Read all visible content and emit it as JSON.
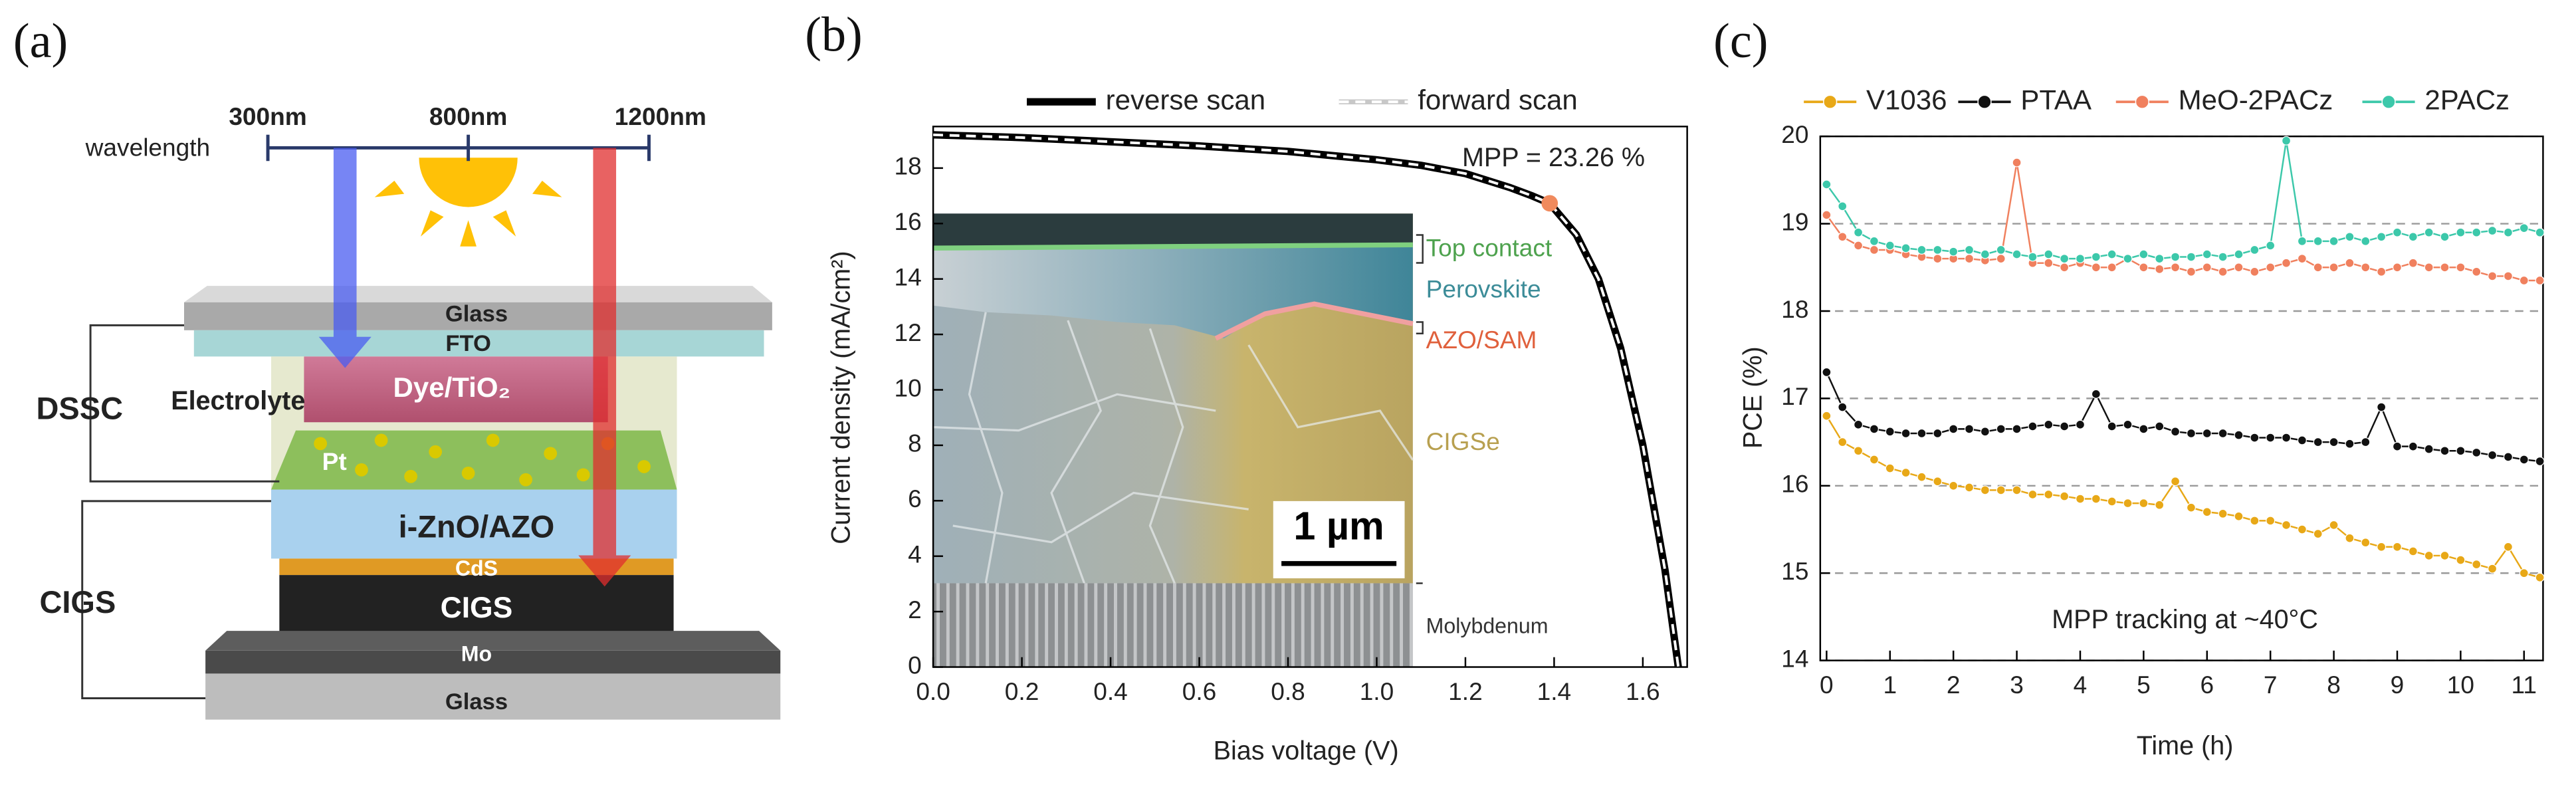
{
  "panel_labels": [
    "(a)",
    "(b)",
    "(c)"
  ],
  "diagram": {
    "wavelength_title": "wavelength",
    "wavelengths": [
      "300nm",
      "800nm",
      "1200nm"
    ],
    "labels": {
      "glass_top": "Glass",
      "fto": "FTO",
      "dye": "Dye/TiO₂",
      "electrolyte": "Electrolyte",
      "pt": "Pt",
      "azo": "i-ZnO/AZO",
      "cds": "CdS",
      "cigs_layer": "CIGS",
      "mo": "Mo",
      "glass_bottom": "Glass",
      "dssc": "DSSC",
      "cigs": "CIGS"
    }
  },
  "chart_data": [
    {
      "type": "line",
      "xlabel": "Bias voltage (V)",
      "ylabel": "Current density (mA/cm²)",
      "x": [
        0,
        0.2,
        0.4,
        0.6,
        0.8,
        1.0,
        1.1,
        1.2,
        1.3,
        1.35,
        1.39,
        1.45,
        1.5,
        1.55,
        1.6,
        1.65,
        1.68
      ],
      "series": [
        {
          "name": "reverse scan",
          "color": "#000000",
          "dash": false,
          "values": [
            19.2,
            19.1,
            18.95,
            18.8,
            18.6,
            18.3,
            18.1,
            17.8,
            17.3,
            17.0,
            16.73,
            15.6,
            14.0,
            11.5,
            8.0,
            3.5,
            0
          ]
        },
        {
          "name": "forward scan",
          "color": "#ffffff",
          "dash": true,
          "values": [
            19.2,
            19.1,
            18.95,
            18.8,
            18.6,
            18.3,
            18.1,
            17.8,
            17.3,
            17.0,
            16.73,
            15.6,
            14.0,
            11.5,
            8.0,
            3.5,
            0
          ]
        }
      ],
      "mpp_point": {
        "x": 1.39,
        "y": 16.73,
        "color": "#f08a5d"
      },
      "annotation": "MPP = 23.26 %",
      "inset_labels": [
        "Top contact",
        "Perovskite",
        "AZO/SAM",
        "CIGSe",
        "Molybdenum",
        "1 µm"
      ],
      "xlim": [
        0,
        1.7
      ],
      "xticks": [
        {
          "value": 0,
          "label": "0.0"
        },
        0.2,
        0.4,
        0.6,
        0.8,
        {
          "value": 1,
          "label": "1.0"
        },
        1.2,
        1.4,
        1.6
      ],
      "ylim": [
        0,
        19.5
      ],
      "yticks": [
        0,
        2,
        4,
        6,
        8,
        10,
        12,
        14,
        16,
        18
      ],
      "grid": false,
      "markers": false
    },
    {
      "type": "line",
      "xlabel": "Time (h)",
      "ylabel": "PCE (%)",
      "x": [
        0,
        0.25,
        0.5,
        0.75,
        1,
        1.25,
        1.5,
        1.75,
        2,
        2.25,
        2.5,
        2.75,
        3,
        3.25,
        3.5,
        3.75,
        4,
        4.25,
        4.5,
        4.75,
        5,
        5.25,
        5.5,
        5.75,
        6,
        6.25,
        6.5,
        6.75,
        7,
        7.25,
        7.5,
        7.75,
        8,
        8.25,
        8.5,
        8.75,
        9,
        9.25,
        9.5,
        9.75,
        10,
        10.25,
        10.5,
        10.75,
        11,
        11.25
      ],
      "series": [
        {
          "name": "V1036",
          "color": "#e8a817",
          "values": [
            16.8,
            16.5,
            16.4,
            16.3,
            16.2,
            16.15,
            16.1,
            16.05,
            16.0,
            15.98,
            15.95,
            15.95,
            15.95,
            15.9,
            15.9,
            15.88,
            15.85,
            15.85,
            15.82,
            15.8,
            15.8,
            15.78,
            16.05,
            15.75,
            15.7,
            15.68,
            15.65,
            15.6,
            15.6,
            15.55,
            15.5,
            15.45,
            15.55,
            15.4,
            15.35,
            15.3,
            15.3,
            15.25,
            15.2,
            15.2,
            15.15,
            15.1,
            15.05,
            15.3,
            15.0,
            14.95
          ]
        },
        {
          "name": "PTAA",
          "color": "#111111",
          "values": [
            17.3,
            16.9,
            16.7,
            16.65,
            16.62,
            16.6,
            16.6,
            16.6,
            16.65,
            16.65,
            16.62,
            16.65,
            16.65,
            16.68,
            16.7,
            16.68,
            16.7,
            17.05,
            16.68,
            16.7,
            16.65,
            16.68,
            16.62,
            16.6,
            16.6,
            16.6,
            16.58,
            16.55,
            16.55,
            16.55,
            16.52,
            16.5,
            16.5,
            16.48,
            16.5,
            16.9,
            16.45,
            16.45,
            16.42,
            16.4,
            16.4,
            16.38,
            16.35,
            16.33,
            16.3,
            16.28
          ]
        },
        {
          "name": "MeO-2PACz",
          "color": "#f0805e",
          "values": [
            19.1,
            18.85,
            18.75,
            18.7,
            18.7,
            18.65,
            18.62,
            18.6,
            18.6,
            18.6,
            18.58,
            18.6,
            19.7,
            18.55,
            18.55,
            18.5,
            18.55,
            18.5,
            18.5,
            18.6,
            18.5,
            18.48,
            18.5,
            18.45,
            18.5,
            18.45,
            18.5,
            18.45,
            18.5,
            18.55,
            18.6,
            18.5,
            18.5,
            18.55,
            18.5,
            18.45,
            18.5,
            18.55,
            18.5,
            18.5,
            18.5,
            18.45,
            18.4,
            18.4,
            18.35,
            18.35
          ]
        },
        {
          "name": "2PACz",
          "color": "#3cc8aa",
          "values": [
            19.45,
            19.2,
            18.9,
            18.8,
            18.75,
            18.72,
            18.7,
            18.7,
            18.68,
            18.7,
            18.65,
            18.7,
            18.65,
            18.62,
            18.65,
            18.6,
            18.6,
            18.62,
            18.65,
            18.6,
            18.65,
            18.6,
            18.62,
            18.62,
            18.65,
            18.62,
            18.65,
            18.7,
            18.75,
            19.95,
            18.8,
            18.8,
            18.8,
            18.85,
            18.8,
            18.85,
            18.9,
            18.85,
            18.9,
            18.85,
            18.9,
            18.9,
            18.92,
            18.9,
            18.95,
            18.9
          ]
        }
      ],
      "annotation": "MPP tracking at ~40°C",
      "xlim": [
        -0.1,
        11.3
      ],
      "xticks": [
        0,
        1,
        2,
        3,
        4,
        5,
        6,
        7,
        8,
        9,
        10,
        11
      ],
      "ylim": [
        14,
        20
      ],
      "yticks": [
        14,
        15,
        16,
        17,
        18,
        19,
        20
      ],
      "grid": true,
      "markers": true
    }
  ]
}
